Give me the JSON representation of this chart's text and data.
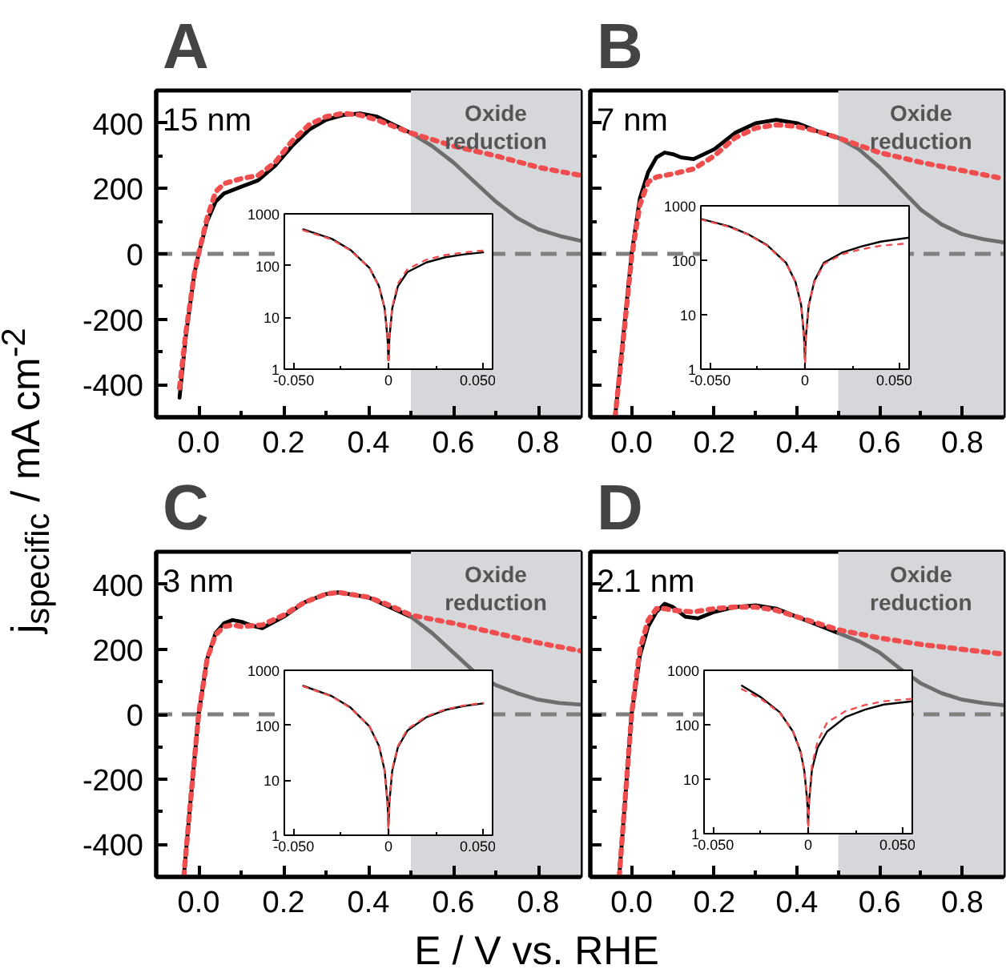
{
  "chart_data": [
    {
      "type": "line",
      "title": "A",
      "ylabel": "j$_{specific}$ / mA cm$^{-2}$",
      "annotations": [
        "15 nm"
      ],
      "xlim": [
        -0.1,
        0.9
      ],
      "ylim": [
        -500,
        500
      ],
      "xticks": [
        {
          "value": 0,
          "label": "0.0"
        },
        {
          "value": 0.1,
          "label": null
        },
        {
          "value": 0.2,
          "label": "0.2"
        },
        {
          "value": 0.3,
          "label": null
        },
        {
          "value": 0.4,
          "label": "0.4"
        },
        {
          "value": 0.5,
          "label": null
        },
        {
          "value": 0.6,
          "label": "0.6"
        },
        {
          "value": 0.7,
          "label": null
        },
        {
          "value": 0.8,
          "label": "0.8"
        }
      ],
      "yticks": [
        -400,
        {
          "value": -300,
          "label": null
        },
        -200,
        {
          "value": -100,
          "label": null
        },
        0,
        {
          "value": 100,
          "label": null
        },
        200,
        {
          "value": 300,
          "label": null
        },
        400
      ],
      "bands": [
        {
          "axis": "x",
          "from": 0.5,
          "to": 0.9,
          "label": "Oxide\nreduction",
          "color": "#d5d7da"
        }
      ],
      "ref_lines": [
        {
          "axis": "y",
          "value": 0,
          "color": "#808080",
          "line_style": "dashed"
        }
      ],
      "series": [
        {
          "color": "#000000",
          "line_style": "solid",
          "x": [
            -0.045,
            -0.03,
            -0.01,
            0.0,
            0.02,
            0.04,
            0.06,
            0.1,
            0.14,
            0.18,
            0.22,
            0.26,
            0.3,
            0.34,
            0.38,
            0.42,
            0.46,
            0.5
          ],
          "values": [
            -440,
            -250,
            -60,
            0,
            100,
            160,
            185,
            205,
            225,
            270,
            330,
            380,
            410,
            425,
            430,
            420,
            395,
            370
          ]
        },
        {
          "color": "#6e6e6e",
          "line_style": "solid",
          "x": [
            0.5,
            0.55,
            0.6,
            0.65,
            0.7,
            0.75,
            0.8,
            0.85,
            0.9
          ],
          "values": [
            370,
            330,
            280,
            220,
            160,
            110,
            75,
            55,
            40
          ]
        },
        {
          "color": "#f04e4e",
          "line_style": "dotted",
          "x": [
            -0.045,
            -0.03,
            -0.01,
            0.0,
            0.02,
            0.04,
            0.06,
            0.1,
            0.14,
            0.18,
            0.22,
            0.26,
            0.3,
            0.34,
            0.38,
            0.42,
            0.46,
            0.5,
            0.6,
            0.7,
            0.8,
            0.9
          ],
          "values": [
            -410,
            -240,
            -60,
            0,
            110,
            190,
            215,
            230,
            240,
            280,
            345,
            395,
            420,
            430,
            425,
            410,
            390,
            370,
            330,
            300,
            265,
            240
          ]
        }
      ]
    },
    {
      "type": "line",
      "title": "B",
      "annotations": [
        "7 nm"
      ],
      "tick_labels": "x",
      "xlim": [
        -0.1,
        0.9
      ],
      "ylim": [
        -500,
        500
      ],
      "xticks": [
        {
          "value": 0,
          "label": "0.0"
        },
        {
          "value": 0.1,
          "label": null
        },
        {
          "value": 0.2,
          "label": "0.2"
        },
        {
          "value": 0.3,
          "label": null
        },
        {
          "value": 0.4,
          "label": "0.4"
        },
        {
          "value": 0.5,
          "label": null
        },
        {
          "value": 0.6,
          "label": "0.6"
        },
        {
          "value": 0.7,
          "label": null
        },
        {
          "value": 0.8,
          "label": "0.8"
        }
      ],
      "yticks": [
        -400,
        {
          "value": -300,
          "label": null
        },
        -200,
        {
          "value": -100,
          "label": null
        },
        0,
        {
          "value": 100,
          "label": null
        },
        200,
        {
          "value": 300,
          "label": null
        },
        400
      ],
      "bands": [
        {
          "axis": "x",
          "from": 0.5,
          "to": 0.9,
          "label": "Oxide\nreduction",
          "color": "#d5d7da"
        }
      ],
      "ref_lines": [
        {
          "axis": "y",
          "value": 0,
          "color": "#808080",
          "line_style": "dashed"
        }
      ],
      "series": [
        {
          "color": "#000000",
          "line_style": "solid",
          "x": [
            -0.04,
            -0.02,
            0.0,
            0.02,
            0.04,
            0.06,
            0.08,
            0.1,
            0.12,
            0.15,
            0.2,
            0.25,
            0.3,
            0.35,
            0.4,
            0.45,
            0.5
          ],
          "values": [
            -500,
            -250,
            0,
            170,
            250,
            295,
            310,
            305,
            295,
            290,
            320,
            370,
            400,
            410,
            400,
            375,
            355
          ]
        },
        {
          "color": "#6e6e6e",
          "line_style": "solid",
          "x": [
            0.5,
            0.55,
            0.6,
            0.65,
            0.7,
            0.75,
            0.8,
            0.85,
            0.9
          ],
          "values": [
            355,
            320,
            265,
            200,
            135,
            90,
            60,
            45,
            35
          ]
        },
        {
          "color": "#f04e4e",
          "line_style": "dotted",
          "x": [
            -0.04,
            -0.02,
            0.0,
            0.02,
            0.04,
            0.06,
            0.1,
            0.15,
            0.2,
            0.25,
            0.3,
            0.35,
            0.4,
            0.45,
            0.5,
            0.6,
            0.7,
            0.8,
            0.9
          ],
          "values": [
            -500,
            -260,
            -10,
            150,
            220,
            235,
            245,
            260,
            300,
            355,
            385,
            395,
            390,
            375,
            355,
            310,
            280,
            255,
            230
          ]
        }
      ]
    },
    {
      "type": "line",
      "title": "C",
      "xlabel": "E / V vs. RHE",
      "annotations": [
        "3 nm"
      ],
      "xlim": [
        -0.1,
        0.9
      ],
      "ylim": [
        -500,
        500
      ],
      "xticks": [
        {
          "value": 0,
          "label": "0.0"
        },
        {
          "value": 0.1,
          "label": null
        },
        {
          "value": 0.2,
          "label": "0.2"
        },
        {
          "value": 0.3,
          "label": null
        },
        {
          "value": 0.4,
          "label": "0.4"
        },
        {
          "value": 0.5,
          "label": null
        },
        {
          "value": 0.6,
          "label": "0.6"
        },
        {
          "value": 0.7,
          "label": null
        },
        {
          "value": 0.8,
          "label": "0.8"
        }
      ],
      "yticks": [
        -400,
        {
          "value": -300,
          "label": null
        },
        -200,
        {
          "value": -100,
          "label": null
        },
        0,
        {
          "value": 100,
          "label": null
        },
        200,
        {
          "value": 300,
          "label": null
        },
        400
      ],
      "bands": [
        {
          "axis": "x",
          "from": 0.5,
          "to": 0.9,
          "label": "Oxide\nreduction",
          "color": "#d5d7da"
        }
      ],
      "ref_lines": [
        {
          "axis": "y",
          "value": 0,
          "color": "#808080",
          "line_style": "dashed"
        }
      ],
      "series": [
        {
          "color": "#000000",
          "line_style": "solid",
          "x": [
            -0.035,
            -0.02,
            0.0,
            0.02,
            0.04,
            0.06,
            0.08,
            0.1,
            0.12,
            0.15,
            0.2,
            0.25,
            0.3,
            0.33,
            0.4,
            0.45,
            0.5
          ],
          "values": [
            -500,
            -280,
            0,
            170,
            250,
            280,
            290,
            285,
            275,
            265,
            300,
            345,
            370,
            375,
            360,
            330,
            300
          ]
        },
        {
          "color": "#6e6e6e",
          "line_style": "solid",
          "x": [
            0.5,
            0.55,
            0.6,
            0.65,
            0.7,
            0.75,
            0.8,
            0.85,
            0.9
          ],
          "values": [
            300,
            250,
            190,
            130,
            90,
            65,
            45,
            35,
            30
          ]
        },
        {
          "color": "#f04e4e",
          "line_style": "dotted",
          "x": [
            -0.035,
            -0.02,
            0.0,
            0.02,
            0.04,
            0.06,
            0.08,
            0.1,
            0.15,
            0.2,
            0.25,
            0.3,
            0.33,
            0.4,
            0.45,
            0.5,
            0.6,
            0.7,
            0.8,
            0.9
          ],
          "values": [
            -500,
            -280,
            0,
            170,
            245,
            270,
            275,
            270,
            275,
            305,
            345,
            370,
            375,
            360,
            335,
            305,
            280,
            250,
            220,
            195
          ]
        }
      ]
    },
    {
      "type": "line",
      "title": "D",
      "annotations": [
        "2.1 nm"
      ],
      "tick_labels": "x",
      "xlim": [
        -0.1,
        0.9
      ],
      "ylim": [
        -500,
        500
      ],
      "xticks": [
        {
          "value": 0,
          "label": "0.0"
        },
        {
          "value": 0.1,
          "label": null
        },
        {
          "value": 0.2,
          "label": "0.2"
        },
        {
          "value": 0.3,
          "label": null
        },
        {
          "value": 0.4,
          "label": "0.4"
        },
        {
          "value": 0.5,
          "label": null
        },
        {
          "value": 0.6,
          "label": "0.6"
        },
        {
          "value": 0.7,
          "label": null
        },
        {
          "value": 0.8,
          "label": "0.8"
        }
      ],
      "yticks": [
        -400,
        {
          "value": -300,
          "label": null
        },
        -200,
        {
          "value": -100,
          "label": null
        },
        0,
        {
          "value": 100,
          "label": null
        },
        200,
        {
          "value": 300,
          "label": null
        },
        400
      ],
      "bands": [
        {
          "axis": "x",
          "from": 0.5,
          "to": 0.9,
          "label": "Oxide\nreduction",
          "color": "#d5d7da"
        }
      ],
      "ref_lines": [
        {
          "axis": "y",
          "value": 0,
          "color": "#808080",
          "line_style": "dashed"
        }
      ],
      "series": [
        {
          "color": "#000000",
          "line_style": "solid",
          "x": [
            -0.03,
            -0.015,
            0.0,
            0.02,
            0.04,
            0.06,
            0.08,
            0.1,
            0.13,
            0.16,
            0.2,
            0.25,
            0.3,
            0.35,
            0.4,
            0.45,
            0.5
          ],
          "values": [
            -500,
            -250,
            0,
            180,
            270,
            315,
            340,
            330,
            300,
            295,
            315,
            330,
            335,
            325,
            300,
            275,
            250
          ]
        },
        {
          "color": "#6e6e6e",
          "line_style": "solid",
          "x": [
            0.5,
            0.55,
            0.6,
            0.65,
            0.7,
            0.75,
            0.8,
            0.85,
            0.9
          ],
          "values": [
            250,
            225,
            190,
            140,
            95,
            65,
            45,
            35,
            28
          ]
        },
        {
          "color": "#f04e4e",
          "line_style": "dotted",
          "x": [
            -0.03,
            -0.015,
            0.0,
            0.02,
            0.04,
            0.06,
            0.08,
            0.1,
            0.15,
            0.2,
            0.25,
            0.3,
            0.35,
            0.4,
            0.45,
            0.5,
            0.6,
            0.7,
            0.8,
            0.9
          ],
          "values": [
            -500,
            -250,
            0,
            200,
            290,
            325,
            325,
            320,
            315,
            325,
            330,
            330,
            320,
            300,
            280,
            260,
            235,
            215,
            200,
            185
          ]
        }
      ]
    },
    {
      "type": "line",
      "log": "y",
      "xlim": [
        -0.055,
        0.055
      ],
      "ylim": [
        1,
        1000
      ],
      "xticks": [
        {
          "value": -0.05,
          "label": "-0.050"
        },
        {
          "value": -0.025,
          "label": null
        },
        {
          "value": 0,
          "label": "0"
        },
        {
          "value": 0.025,
          "label": null
        },
        {
          "value": 0.05,
          "label": "0.050"
        }
      ],
      "yticks": [
        1,
        10,
        100,
        1000
      ],
      "series": [
        {
          "color": "#000000",
          "line_style": "solid",
          "x": [
            -0.045,
            -0.03,
            -0.02,
            -0.01,
            -0.005,
            -0.002,
            -0.0005,
            0.0,
            0.0005,
            0.002,
            0.005,
            0.01,
            0.02,
            0.03,
            0.04,
            0.05
          ],
          "values": [
            500,
            330,
            200,
            90,
            40,
            15,
            4,
            1.5,
            4,
            15,
            40,
            75,
            115,
            145,
            165,
            180
          ]
        },
        {
          "color": "#f04e4e",
          "line_style": "dotted",
          "x": [
            -0.045,
            -0.03,
            -0.02,
            -0.01,
            -0.005,
            -0.002,
            -0.0005,
            0.0,
            0.0005,
            0.002,
            0.005,
            0.01,
            0.02,
            0.03,
            0.04,
            0.05
          ],
          "values": [
            480,
            320,
            195,
            90,
            40,
            15,
            4,
            1,
            4,
            16,
            45,
            85,
            130,
            160,
            180,
            195
          ]
        }
      ]
    },
    {
      "type": "line",
      "log": "y",
      "xlim": [
        -0.055,
        0.055
      ],
      "ylim": [
        1,
        1000
      ],
      "xticks": [
        {
          "value": -0.05,
          "label": "-0.050"
        },
        {
          "value": -0.025,
          "label": null
        },
        {
          "value": 0,
          "label": "0"
        },
        {
          "value": 0.025,
          "label": null
        },
        {
          "value": 0.05,
          "label": "0.050"
        }
      ],
      "yticks": [
        1,
        10,
        100,
        1000
      ],
      "series": [
        {
          "color": "#000000",
          "line_style": "solid",
          "x": [
            -0.055,
            -0.04,
            -0.03,
            -0.02,
            -0.01,
            -0.005,
            -0.002,
            -0.0005,
            0.0,
            0.0005,
            0.002,
            0.005,
            0.01,
            0.02,
            0.03,
            0.04,
            0.055
          ],
          "values": [
            575,
            420,
            300,
            190,
            90,
            40,
            15,
            4,
            1.5,
            4,
            15,
            42,
            90,
            140,
            180,
            220,
            260
          ]
        },
        {
          "color": "#f04e4e",
          "line_style": "dotted",
          "x": [
            -0.055,
            -0.04,
            -0.03,
            -0.02,
            -0.01,
            -0.005,
            -0.002,
            -0.0005,
            0.0,
            0.0005,
            0.002,
            0.005,
            0.01,
            0.02,
            0.03,
            0.04,
            0.055
          ],
          "values": [
            560,
            410,
            295,
            185,
            88,
            40,
            15,
            4,
            1,
            4,
            15,
            40,
            85,
            130,
            160,
            185,
            205
          ]
        }
      ]
    },
    {
      "type": "line",
      "log": "y",
      "xlim": [
        -0.055,
        0.055
      ],
      "ylim": [
        1,
        1000
      ],
      "xticks": [
        {
          "value": -0.05,
          "label": "-0.050"
        },
        {
          "value": -0.025,
          "label": null
        },
        {
          "value": 0,
          "label": "0"
        },
        {
          "value": 0.025,
          "label": null
        },
        {
          "value": 0.05,
          "label": "0.050"
        }
      ],
      "yticks": [
        1,
        10,
        100,
        1000
      ],
      "series": [
        {
          "color": "#000000",
          "line_style": "solid",
          "x": [
            -0.045,
            -0.03,
            -0.02,
            -0.01,
            -0.005,
            -0.002,
            -0.0005,
            0.0,
            0.0005,
            0.002,
            0.005,
            0.01,
            0.02,
            0.03,
            0.04,
            0.05
          ],
          "values": [
            520,
            340,
            210,
            95,
            42,
            15,
            4,
            1.5,
            4,
            15,
            40,
            80,
            140,
            190,
            225,
            250
          ]
        },
        {
          "color": "#f04e4e",
          "line_style": "dotted",
          "x": [
            -0.045,
            -0.03,
            -0.02,
            -0.01,
            -0.005,
            -0.002,
            -0.0005,
            0.0,
            0.0005,
            0.002,
            0.005,
            0.01,
            0.02,
            0.03,
            0.04,
            0.05
          ],
          "values": [
            510,
            335,
            205,
            95,
            42,
            15,
            4,
            1,
            4,
            16,
            42,
            85,
            145,
            195,
            230,
            255
          ]
        }
      ]
    },
    {
      "type": "line",
      "log": "y",
      "xlim": [
        -0.055,
        0.055
      ],
      "ylim": [
        1,
        1000
      ],
      "xticks": [
        {
          "value": -0.05,
          "label": "-0.050"
        },
        {
          "value": -0.025,
          "label": null
        },
        {
          "value": 0,
          "label": "0"
        },
        {
          "value": 0.025,
          "label": null
        },
        {
          "value": 0.05,
          "label": "0.050"
        }
      ],
      "yticks": [
        1,
        10,
        100,
        1000
      ],
      "series": [
        {
          "color": "#000000",
          "line_style": "solid",
          "x": [
            -0.035,
            -0.025,
            -0.015,
            -0.008,
            -0.004,
            -0.002,
            -0.0005,
            0.0,
            0.0005,
            0.002,
            0.005,
            0.01,
            0.02,
            0.03,
            0.04,
            0.055
          ],
          "values": [
            520,
            320,
            170,
            75,
            32,
            14,
            4,
            1.5,
            4,
            15,
            38,
            75,
            140,
            190,
            235,
            270
          ]
        },
        {
          "color": "#f04e4e",
          "line_style": "dotted",
          "x": [
            -0.035,
            -0.025,
            -0.015,
            -0.008,
            -0.004,
            -0.002,
            -0.0005,
            0.0,
            0.0005,
            0.002,
            0.005,
            0.01,
            0.02,
            0.03,
            0.04,
            0.055
          ],
          "values": [
            450,
            300,
            165,
            75,
            32,
            14,
            4,
            1,
            4,
            18,
            50,
            110,
            180,
            230,
            270,
            300
          ]
        }
      ]
    }
  ]
}
